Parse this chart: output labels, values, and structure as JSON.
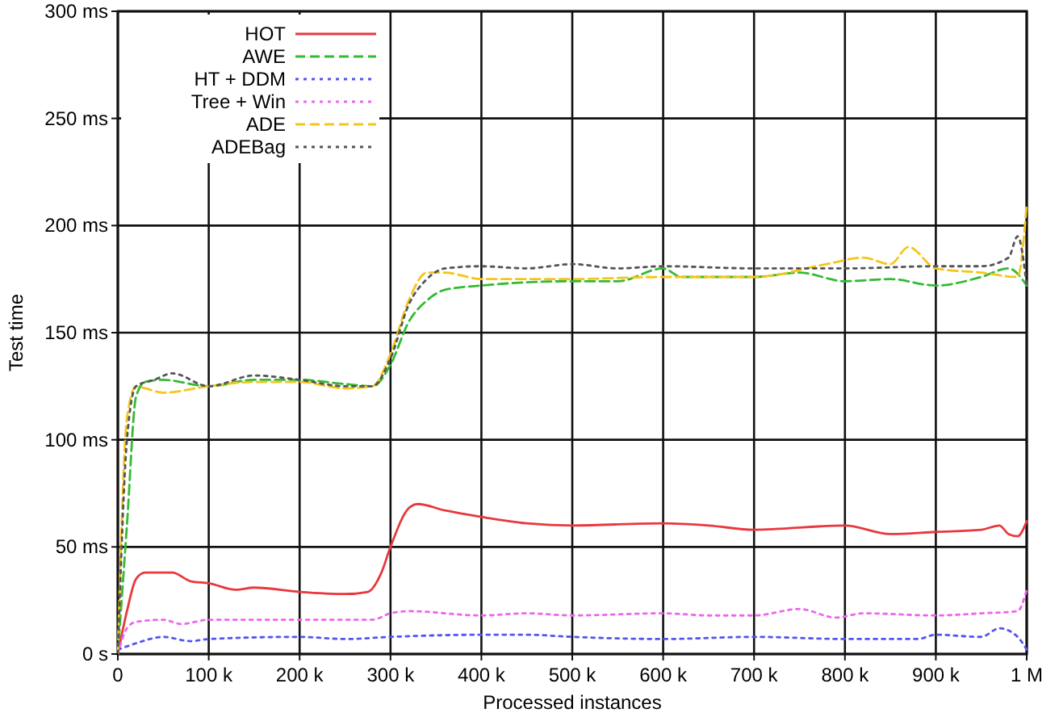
{
  "chart_data": {
    "type": "line",
    "xlabel": "Processed instances",
    "ylabel": "Test time",
    "xlim": [
      0,
      1000000
    ],
    "ylim": [
      0,
      300
    ],
    "xticks": [
      {
        "value": 0,
        "label": "0"
      },
      {
        "value": 100000,
        "label": "100 k"
      },
      {
        "value": 200000,
        "label": "200 k"
      },
      {
        "value": 300000,
        "label": "300 k"
      },
      {
        "value": 400000,
        "label": "400 k"
      },
      {
        "value": 500000,
        "label": "500 k"
      },
      {
        "value": 600000,
        "label": "600 k"
      },
      {
        "value": 700000,
        "label": "700 k"
      },
      {
        "value": 800000,
        "label": "800 k"
      },
      {
        "value": 900000,
        "label": "900 k"
      },
      {
        "value": 1000000,
        "label": "1 M"
      }
    ],
    "yticks": [
      {
        "value": 0,
        "label": "0 s"
      },
      {
        "value": 50,
        "label": "50 ms"
      },
      {
        "value": 100,
        "label": "100 ms"
      },
      {
        "value": 150,
        "label": "150 ms"
      },
      {
        "value": 200,
        "label": "200 ms"
      },
      {
        "value": 250,
        "label": "250 ms"
      },
      {
        "value": 300,
        "label": "300 ms"
      }
    ],
    "grid": true,
    "legend": "top left",
    "marker": "none",
    "series": [
      {
        "name": "HOT",
        "color": "#e8383d",
        "line_style": "solid",
        "x": [
          0,
          10000,
          20000,
          30000,
          60000,
          80000,
          100000,
          130000,
          150000,
          200000,
          250000,
          275000,
          290000,
          300000,
          320000,
          330000,
          360000,
          400000,
          450000,
          500000,
          600000,
          650000,
          700000,
          800000,
          850000,
          900000,
          950000,
          970000,
          980000,
          990000,
          1000000
        ],
        "values": [
          0,
          20,
          35,
          38,
          38,
          34,
          33,
          30,
          31,
          29,
          28,
          29,
          38,
          50,
          68,
          70,
          67,
          64,
          61,
          60,
          61,
          60,
          58,
          60,
          56,
          57,
          58,
          60,
          56,
          55,
          62
        ]
      },
      {
        "name": "AWE",
        "color": "#33bb33",
        "line_style": "dashed",
        "x": [
          0,
          10000,
          20000,
          30000,
          50000,
          100000,
          150000,
          200000,
          250000,
          280000,
          300000,
          320000,
          340000,
          360000,
          400000,
          500000,
          550000,
          600000,
          620000,
          700000,
          750000,
          800000,
          850000,
          900000,
          950000,
          980000,
          1000000
        ],
        "values": [
          0,
          60,
          120,
          127,
          128,
          125,
          128,
          128,
          126,
          125,
          135,
          155,
          165,
          170,
          172,
          174,
          174,
          180,
          176,
          176,
          178,
          174,
          175,
          172,
          176,
          180,
          172
        ]
      },
      {
        "name": "HT + DDM",
        "color": "#5555ee",
        "line_style": "dotted",
        "x": [
          0,
          20000,
          50000,
          80000,
          100000,
          200000,
          250000,
          300000,
          400000,
          450000,
          500000,
          600000,
          700000,
          800000,
          880000,
          900000,
          950000,
          970000,
          990000,
          1000000
        ],
        "values": [
          2,
          5,
          8,
          6,
          7,
          8,
          7,
          8,
          9,
          9,
          8,
          7,
          8,
          7,
          7,
          9,
          8,
          12,
          8,
          2
        ]
      },
      {
        "name": "Tree + Win",
        "color": "#ee66ee",
        "line_style": "dotted",
        "x": [
          0,
          10000,
          20000,
          50000,
          70000,
          100000,
          200000,
          280000,
          300000,
          320000,
          400000,
          450000,
          500000,
          600000,
          650000,
          700000,
          750000,
          790000,
          820000,
          900000,
          950000,
          990000,
          1000000
        ],
        "values": [
          0,
          12,
          15,
          16,
          14,
          16,
          16,
          16,
          19,
          20,
          18,
          19,
          18,
          19,
          18,
          18,
          21,
          17,
          19,
          18,
          19,
          20,
          30
        ]
      },
      {
        "name": "ADE",
        "color": "#f5c518",
        "line_style": "dashed",
        "x": [
          0,
          10000,
          20000,
          30000,
          50000,
          100000,
          150000,
          200000,
          250000,
          280000,
          300000,
          320000,
          340000,
          360000,
          400000,
          500000,
          600000,
          700000,
          780000,
          820000,
          850000,
          870000,
          900000,
          950000,
          990000,
          1000000
        ],
        "values": [
          0,
          110,
          125,
          124,
          122,
          125,
          127,
          127,
          124,
          125,
          140,
          165,
          178,
          178,
          175,
          175,
          176,
          176,
          182,
          185,
          182,
          190,
          180,
          178,
          176,
          210
        ]
      },
      {
        "name": "ADEBag",
        "color": "#555555",
        "line_style": "dotted",
        "x": [
          0,
          10000,
          20000,
          40000,
          60000,
          100000,
          150000,
          200000,
          250000,
          280000,
          300000,
          320000,
          340000,
          360000,
          400000,
          450000,
          500000,
          550000,
          600000,
          700000,
          800000,
          900000,
          950000,
          980000,
          990000,
          1000000
        ],
        "values": [
          0,
          100,
          125,
          128,
          131,
          125,
          130,
          128,
          125,
          125,
          138,
          163,
          175,
          180,
          181,
          180,
          182,
          180,
          181,
          180,
          180,
          181,
          181,
          185,
          195,
          172
        ]
      }
    ]
  }
}
